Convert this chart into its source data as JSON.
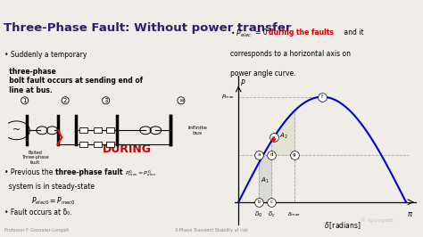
{
  "title": "Three-Phase Fault: Without power transfer",
  "title_color": "#2d1b6b",
  "header_bar_color": "#3d1a6e",
  "slide_bg": "#f0ede8",
  "footer_bg": "#e8e4e0",
  "curve_color": "#0000cc",
  "during_color": "#cc0000",
  "red_text_color": "#cc0000",
  "dashed_color": "#888888",
  "footer_color": "#888888",
  "delta0": 0.38,
  "delta_c": 0.62,
  "delta_max": 1.05,
  "Pmax": 1.0,
  "P0": 0.45,
  "watermark": "© iglongatt",
  "footer_left": "Professor F. Gonzalez-Longatt",
  "footer_right": "3-Phase Transient Stability at risk"
}
